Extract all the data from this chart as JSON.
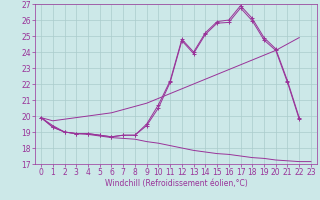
{
  "xlabel": "Windchill (Refroidissement éolien,°C)",
  "x_values": [
    0,
    1,
    2,
    3,
    4,
    5,
    6,
    7,
    8,
    9,
    10,
    11,
    12,
    13,
    14,
    15,
    16,
    17,
    18,
    19,
    20,
    21,
    22,
    23
  ],
  "line_jagged1": [
    19.9,
    19.3,
    19.0,
    18.9,
    18.9,
    18.8,
    18.7,
    18.8,
    18.8,
    19.5,
    20.7,
    22.2,
    24.8,
    24.0,
    25.2,
    25.9,
    26.0,
    26.9,
    26.1,
    24.9,
    24.2,
    22.2,
    19.9,
    null
  ],
  "line_jagged2": [
    19.9,
    19.3,
    19.0,
    18.9,
    18.9,
    18.8,
    18.7,
    18.8,
    18.8,
    19.4,
    20.5,
    22.1,
    24.7,
    23.9,
    25.1,
    25.8,
    25.85,
    26.75,
    25.95,
    24.75,
    24.1,
    22.1,
    19.8,
    null
  ],
  "line_linear": [
    19.9,
    19.7,
    19.8,
    19.9,
    20.0,
    20.1,
    20.2,
    20.4,
    20.6,
    20.8,
    21.1,
    21.4,
    21.7,
    22.0,
    22.3,
    22.6,
    22.9,
    23.2,
    23.5,
    23.8,
    24.1,
    24.5,
    24.9,
    null
  ],
  "line_decreasing": [
    19.9,
    19.4,
    19.0,
    18.9,
    18.85,
    18.75,
    18.65,
    18.6,
    18.55,
    18.4,
    18.3,
    18.15,
    18.0,
    17.85,
    17.75,
    17.65,
    17.6,
    17.5,
    17.4,
    17.35,
    17.25,
    17.2,
    17.15,
    17.15
  ],
  "line_color": "#993399",
  "bg_color": "#cce8e8",
  "grid_color": "#aacccc",
  "ylim": [
    17,
    27
  ],
  "xlim": [
    -0.5,
    23.5
  ],
  "yticks": [
    17,
    18,
    19,
    20,
    21,
    22,
    23,
    24,
    25,
    26,
    27
  ],
  "xticks": [
    0,
    1,
    2,
    3,
    4,
    5,
    6,
    7,
    8,
    9,
    10,
    11,
    12,
    13,
    14,
    15,
    16,
    17,
    18,
    19,
    20,
    21,
    22,
    23
  ],
  "tick_fontsize": 5.5,
  "xlabel_fontsize": 5.5
}
